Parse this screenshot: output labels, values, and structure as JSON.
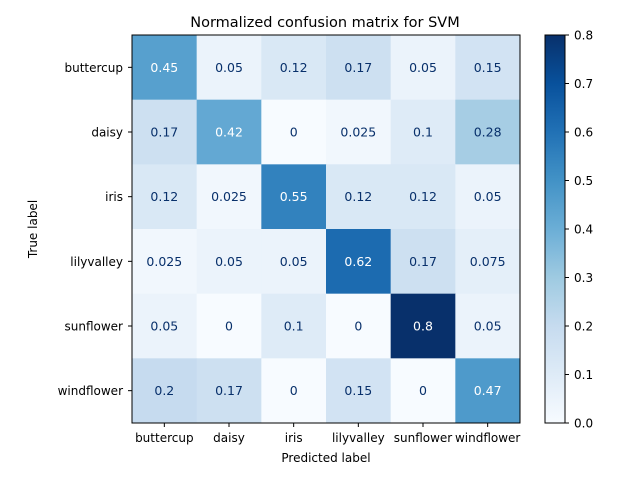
{
  "chart_data": {
    "type": "heatmap",
    "title": "Normalized confusion matrix for SVM",
    "xlabel": "Predicted label",
    "ylabel": "True label",
    "x_categories": [
      "buttercup",
      "daisy",
      "iris",
      "lilyvalley",
      "sunflower",
      "windflower"
    ],
    "y_categories": [
      "buttercup",
      "daisy",
      "iris",
      "lilyvalley",
      "sunflower",
      "windflower"
    ],
    "values": [
      [
        0.45,
        0.05,
        0.12,
        0.17,
        0.05,
        0.15
      ],
      [
        0.17,
        0.42,
        0,
        0.025,
        0.1,
        0.28
      ],
      [
        0.12,
        0.025,
        0.55,
        0.12,
        0.12,
        0.05
      ],
      [
        0.025,
        0.05,
        0.05,
        0.62,
        0.17,
        0.075
      ],
      [
        0.05,
        0,
        0.1,
        0,
        0.8,
        0.05
      ],
      [
        0.2,
        0.17,
        0,
        0.15,
        0,
        0.47
      ]
    ],
    "value_labels": [
      [
        "0.45",
        "0.05",
        "0.12",
        "0.17",
        "0.05",
        "0.15"
      ],
      [
        "0.17",
        "0.42",
        "0",
        "0.025",
        "0.1",
        "0.28"
      ],
      [
        "0.12",
        "0.025",
        "0.55",
        "0.12",
        "0.12",
        "0.05"
      ],
      [
        "0.025",
        "0.05",
        "0.05",
        "0.62",
        "0.17",
        "0.075"
      ],
      [
        "0.05",
        "0",
        "0.1",
        "0",
        "0.8",
        "0.05"
      ],
      [
        "0.2",
        "0.17",
        "0",
        "0.15",
        "0",
        "0.47"
      ]
    ],
    "colorbar": {
      "range": [
        0,
        0.8
      ],
      "ticks": [
        "0.0",
        "0.1",
        "0.2",
        "0.3",
        "0.4",
        "0.5",
        "0.6",
        "0.7",
        "0.8"
      ]
    },
    "colormap": "Blues",
    "grid": false
  }
}
